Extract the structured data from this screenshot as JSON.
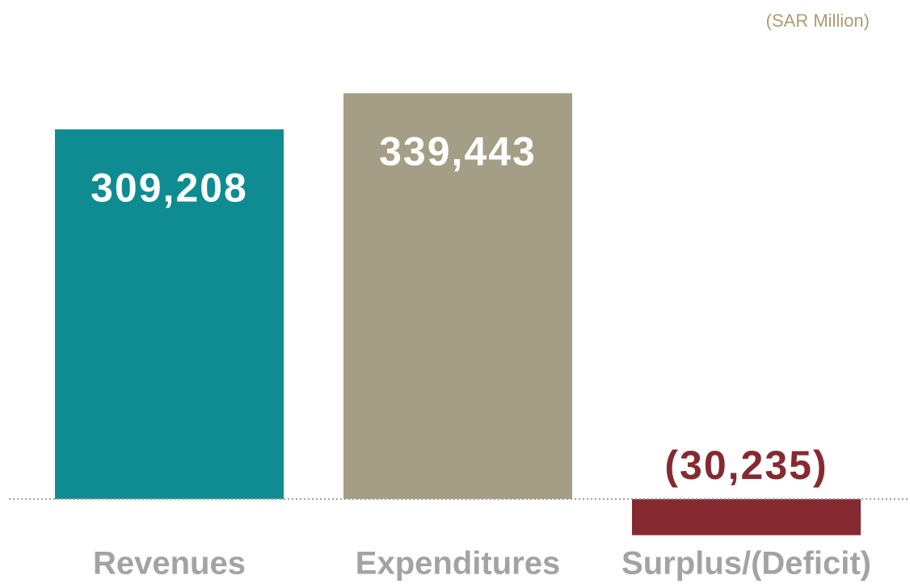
{
  "chart_data": {
    "type": "bar",
    "unit_note": "(SAR Million)",
    "categories": [
      "Revenues",
      "Expenditures",
      "Surplus/(Deficit)"
    ],
    "values": [
      309208,
      339443,
      -30235
    ],
    "value_labels": [
      "309,208",
      "339,443",
      "(30,235)"
    ],
    "colors": [
      "#0e8c91",
      "#a59e87",
      "#862a31"
    ],
    "ylim": [
      -40000,
      360000
    ]
  }
}
